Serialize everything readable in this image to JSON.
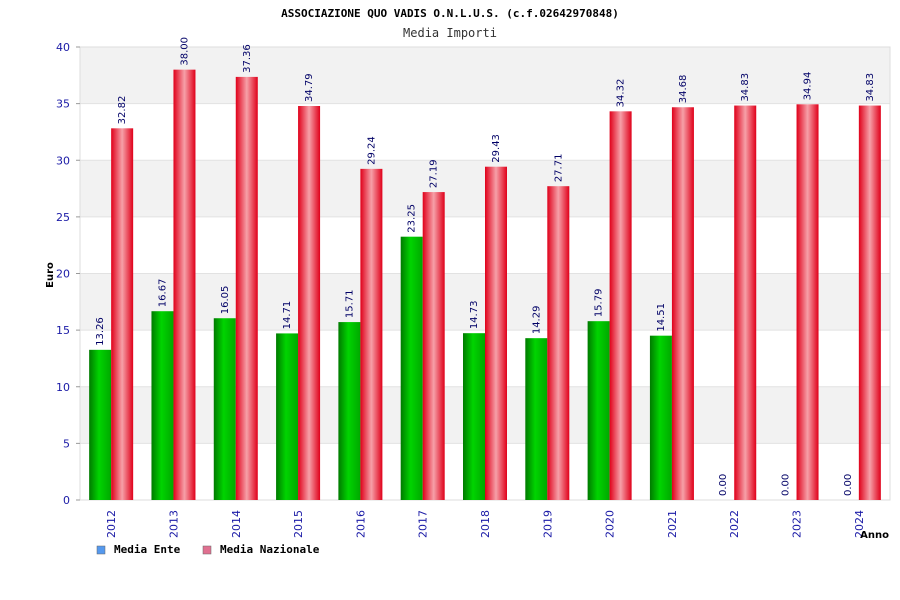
{
  "header": {
    "title": "ASSOCIAZIONE QUO VADIS O.N.L.U.S. (c.f.02642970848)",
    "subtitle": "Media Importi"
  },
  "colors": {
    "ente": "#00b000",
    "nazionale": "#f01020",
    "legend_ente": "#5599ee",
    "legend_nazionale": "#e07090",
    "tick_text": "#1a1aa6",
    "band": "#f2f2f2"
  },
  "chart_data": {
    "type": "bar",
    "title": "ASSOCIAZIONE QUO VADIS O.N.L.U.S. (c.f.02642970848)",
    "subtitle": "Media Importi",
    "xlabel": "Anno",
    "ylabel": "Euro",
    "ylim": [
      0,
      40
    ],
    "yticks": [
      0,
      5,
      10,
      15,
      20,
      25,
      30,
      35,
      40
    ],
    "grid": true,
    "legend": "bottom-left",
    "categories": [
      "2012",
      "2013",
      "2014",
      "2015",
      "2016",
      "2017",
      "2018",
      "2019",
      "2020",
      "2021",
      "2022",
      "2023",
      "2024"
    ],
    "series": [
      {
        "name": "Media Ente",
        "values": [
          13.26,
          16.67,
          16.05,
          14.71,
          15.71,
          23.25,
          14.73,
          14.29,
          15.79,
          14.51,
          0.0,
          0.0,
          0.0
        ],
        "labels": [
          "13.26",
          "16.67",
          "16.05",
          "14.71",
          "15.71",
          "23.25",
          "14.73",
          "14.29",
          "15.79",
          "14.51",
          "0.00",
          "0.00",
          "0.00"
        ]
      },
      {
        "name": "Media Nazionale",
        "values": [
          32.82,
          38.0,
          37.36,
          34.79,
          29.24,
          27.19,
          29.43,
          27.71,
          34.32,
          34.68,
          34.83,
          34.94,
          34.83
        ],
        "labels": [
          "32.82",
          "38.00",
          "37.36",
          "34.79",
          "29.24",
          "27.19",
          "29.43",
          "27.71",
          "34.32",
          "34.68",
          "34.83",
          "34.94",
          "34.83"
        ]
      }
    ]
  }
}
